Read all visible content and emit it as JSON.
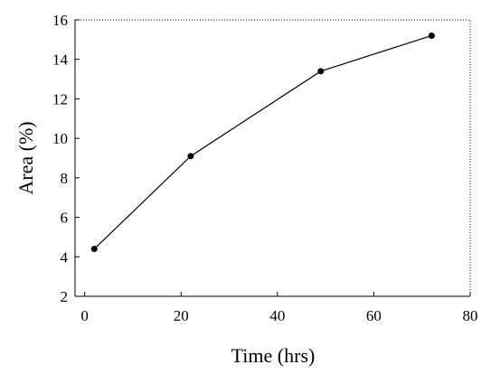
{
  "chart_data": {
    "type": "line",
    "title": "",
    "xlabel": "Time (hrs)",
    "ylabel": "Area (%)",
    "xlim": [
      -2,
      80
    ],
    "ylim": [
      2,
      16
    ],
    "xticks": [
      0,
      20,
      40,
      60,
      80
    ],
    "yticks": [
      2,
      4,
      6,
      8,
      10,
      12,
      14,
      16
    ],
    "xtick_labels": [
      "0",
      "20",
      "40",
      "60",
      "80"
    ],
    "ytick_labels": [
      "2",
      "4",
      "6",
      "8",
      "10",
      "12",
      "14",
      "16"
    ],
    "grid": false,
    "frame": "dotted",
    "series": [
      {
        "x": [
          2,
          22,
          49,
          72
        ],
        "y": [
          4.4,
          9.1,
          13.4,
          15.2
        ],
        "color": "#000000",
        "marker": "circle"
      }
    ]
  }
}
